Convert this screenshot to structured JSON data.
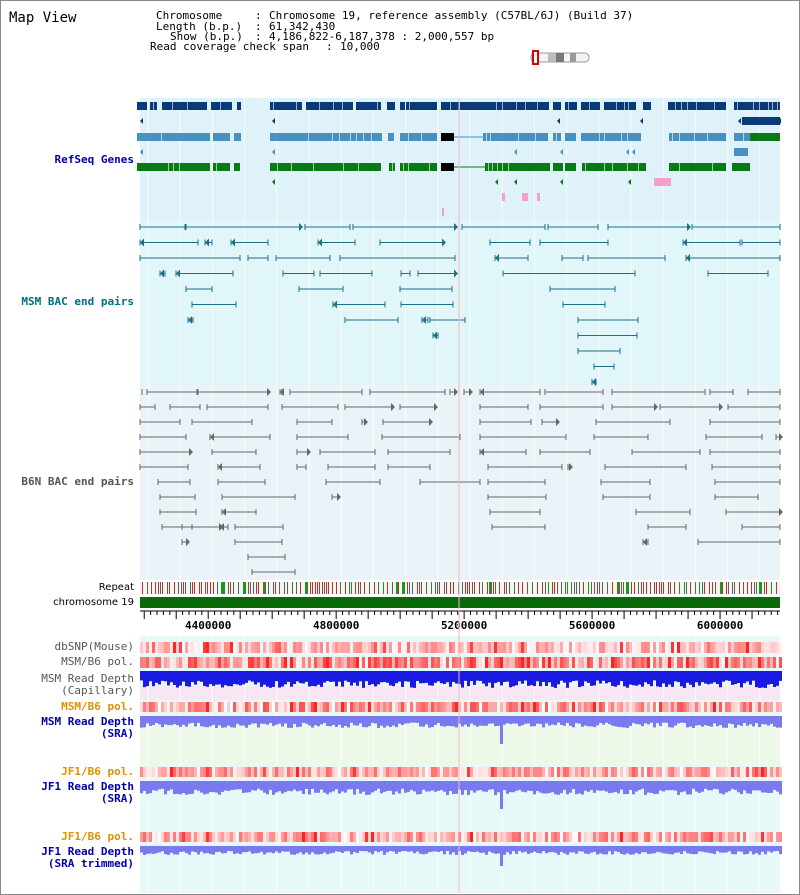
{
  "title": "Map View",
  "info": {
    "chromosome_key": "Chromosome",
    "chromosome_value": "Chromosome 19, reference assembly (C57BL/6J) (Build 37)",
    "length_key": "Length (b.p.)",
    "length_value": "61,342,430",
    "show_key": "Show (b.p.)",
    "show_value": "4,186,822-6,187,378 : 2,000,557 bp",
    "span_key": "Read coverage check span",
    "span_value": "10,000"
  },
  "tracks": {
    "refseq": "RefSeq Genes",
    "msm_bac": "MSM BAC end pairs",
    "b6n_bac": "B6N BAC end pairs",
    "repeat": "Repeat",
    "chromosome": "chromosome 19",
    "dbsnp": "dbSNP(Mouse)",
    "msm_pol": "MSM/B6 pol.",
    "msm_depth_cap_1": "MSM Read Depth",
    "msm_depth_cap_2": "(Capillary)",
    "msm_pol_2": "MSM/B6 pol.",
    "msm_depth_sra_1": "MSM Read Depth",
    "msm_depth_sra_2": "(SRA)",
    "jf1_pol": "JF1/B6 pol.",
    "jf1_depth_sra_1": "JF1 Read Depth",
    "jf1_depth_sra_2": "(SRA)",
    "jf1_pol_2": "JF1/B6 pol.",
    "jf1_depth_trim_1": "JF1 Read Depth",
    "jf1_depth_trim_2": "(SRA trimmed)"
  },
  "axis": {
    "view_start": 4186822,
    "view_end": 6187378,
    "ticks": [
      4400000,
      4800000,
      5200000,
      5600000,
      6000000
    ],
    "tick_labels": [
      "4400000",
      "4800000",
      "5200000",
      "5600000",
      "6000000"
    ]
  },
  "colors": {
    "refseq_bg": "#dff2fa",
    "bac_bg": "#e0f6f8",
    "b6n_bg": "#eaf4f8",
    "refseq_dark": "#0b3a78",
    "refseq_mid": "#4790c0",
    "refseq_green": "#0a7a14",
    "msm_line": "#1f6f8a",
    "b6n_line": "#666666",
    "chrom_bar": "#0a6a0a",
    "depth_cap": "#1a1ae0",
    "depth_sra": "#7a7af0",
    "label_blue": "#0000aa",
    "label_teal": "#006e80",
    "label_orange": "#e09000",
    "label_gray": "#555555"
  }
}
